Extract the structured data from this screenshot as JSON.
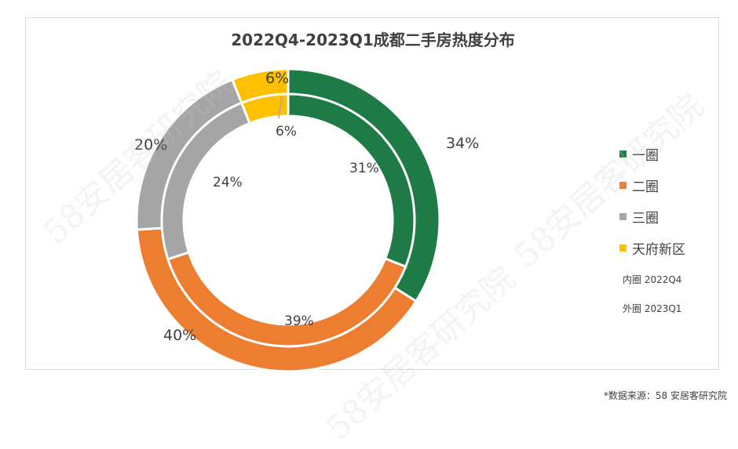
{
  "chart_data": {
    "type": "pie",
    "title": "2022Q4-2023Q1成都二手房热度分布",
    "categories": [
      "一圈",
      "二圈",
      "三圈",
      "天府新区"
    ],
    "series": [
      {
        "name": "内圈 2022Q4",
        "values": [
          31,
          39,
          24,
          6
        ],
        "labels": [
          "31%",
          "39%",
          "24%",
          "6%"
        ]
      },
      {
        "name": "外圈 2023Q1",
        "values": [
          34,
          40,
          20,
          6
        ],
        "labels": [
          "34%",
          "40%",
          "20%",
          "6%"
        ]
      }
    ],
    "colors": [
      "#1e7b45",
      "#ed7d31",
      "#a5a5a5",
      "#ffc000"
    ],
    "legend_position": "right"
  },
  "legend": {
    "items": [
      {
        "label": "一圈",
        "color": "#1e7b45"
      },
      {
        "label": "二圈",
        "color": "#ed7d31"
      },
      {
        "label": "三圈",
        "color": "#a5a5a5"
      },
      {
        "label": "天府新区",
        "color": "#ffc000"
      }
    ],
    "inner_note": "内圈 2022Q4",
    "outer_note": "外圈 2023Q1"
  },
  "source": "*数据来源：58 安居客研究院",
  "watermark": "58安居客研究院"
}
